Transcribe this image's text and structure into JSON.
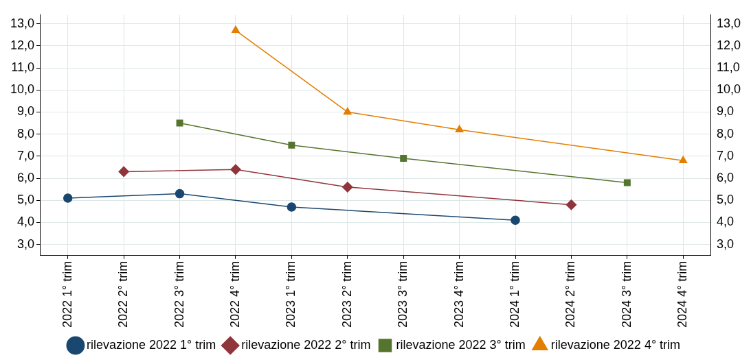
{
  "chart_data": {
    "type": "line",
    "categories": [
      "2022 1° trim",
      "2022 2° trim",
      "2022 3° trim",
      "2022 4° trim",
      "2023 1° trim",
      "2023 2° trim",
      "2023 3° trim",
      "2023 4° trim",
      "2024 1° trim",
      "2024 2° trim",
      "2024 3° trim",
      "2024 4° trim"
    ],
    "series": [
      {
        "name": "rilevazione 2022 1° trim",
        "color": "#1a476f",
        "marker": "circle",
        "values": [
          5.1,
          null,
          5.3,
          null,
          4.7,
          null,
          null,
          null,
          4.1,
          null,
          null,
          null
        ]
      },
      {
        "name": "rilevazione 2022 2° trim",
        "color": "#90353b",
        "marker": "diamond",
        "values": [
          null,
          6.3,
          null,
          6.4,
          null,
          5.6,
          null,
          null,
          null,
          4.8,
          null,
          null
        ]
      },
      {
        "name": "rilevazione 2022 3° trim",
        "color": "#55752f",
        "marker": "square",
        "values": [
          null,
          null,
          8.5,
          null,
          7.5,
          null,
          6.9,
          null,
          null,
          null,
          5.8,
          null
        ]
      },
      {
        "name": "rilevazione 2022 4° trim",
        "color": "#e37e00",
        "marker": "triangle",
        "values": [
          null,
          null,
          null,
          12.7,
          null,
          9.0,
          null,
          8.2,
          null,
          null,
          null,
          6.8
        ]
      }
    ],
    "ylim": [
      2.5,
      13.4
    ],
    "yticks": [
      {
        "value": 3,
        "label": "3,0"
      },
      {
        "value": 4,
        "label": "4,0"
      },
      {
        "value": 5,
        "label": "5,0"
      },
      {
        "value": 6,
        "label": "6,0"
      },
      {
        "value": 7,
        "label": "7,0"
      },
      {
        "value": 8,
        "label": "8,0"
      },
      {
        "value": 9,
        "label": "9,0"
      },
      {
        "value": 10,
        "label": "10,0"
      },
      {
        "value": 11,
        "label": "11,0"
      },
      {
        "value": 12,
        "label": "12,0"
      },
      {
        "value": 13,
        "label": "13,0"
      }
    ],
    "y2lim": [
      2.5,
      13.4
    ],
    "y2ticks": [
      {
        "value": 3,
        "label": "3,0"
      },
      {
        "value": 4,
        "label": "4,0"
      },
      {
        "value": 5,
        "label": "5,0"
      },
      {
        "value": 6,
        "label": "6,0"
      },
      {
        "value": 7,
        "label": "7,0"
      },
      {
        "value": 8,
        "label": "8,0"
      },
      {
        "value": 9,
        "label": "9,0"
      },
      {
        "value": 10,
        "label": "10,0"
      },
      {
        "value": 11,
        "label": "11,0"
      },
      {
        "value": 12,
        "label": "12,0"
      },
      {
        "value": 13,
        "label": "13,0"
      }
    ],
    "grid": true,
    "legend": "bottom",
    "line_style": "solid"
  }
}
